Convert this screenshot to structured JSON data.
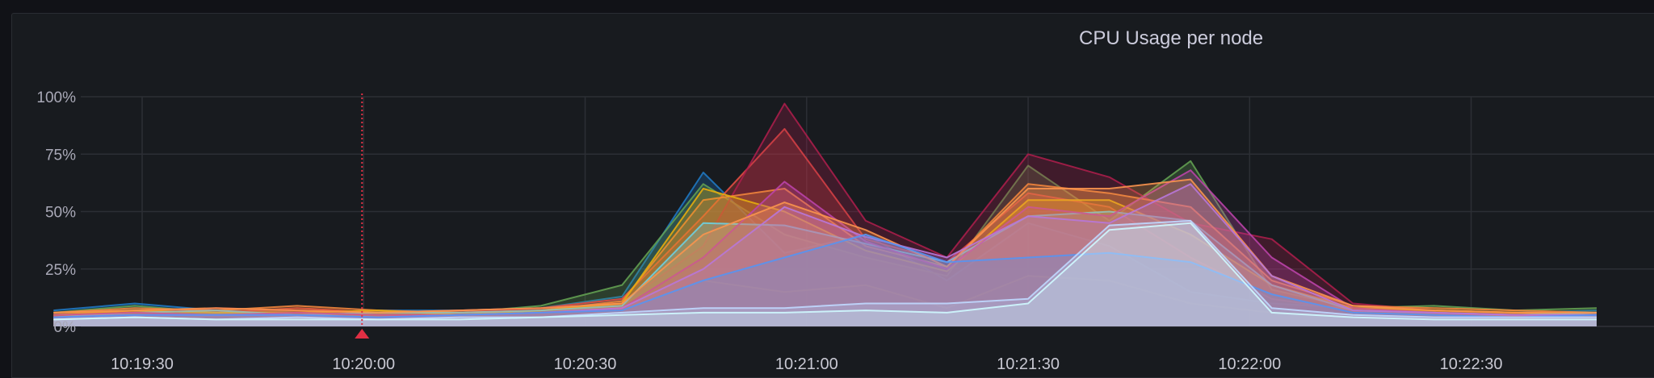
{
  "chart_data": {
    "type": "area",
    "title": "CPU Usage per node",
    "xlabel": "",
    "ylabel": "",
    "ylim": [
      0,
      100
    ],
    "yticks": [
      "0%",
      "25%",
      "50%",
      "75%",
      "100%"
    ],
    "ytick_values": [
      0,
      25,
      50,
      75,
      100
    ],
    "x": [
      "10:19:18",
      "10:19:29",
      "10:19:40",
      "10:19:51",
      "10:20:02",
      "10:20:13",
      "10:20:24",
      "10:20:35",
      "10:20:46",
      "10:20:57",
      "10:21:08",
      "10:21:19",
      "10:21:30",
      "10:21:41",
      "10:21:52",
      "10:22:03",
      "10:22:14",
      "10:22:25",
      "10:22:36",
      "10:22:47"
    ],
    "xticks": [
      "10:19:30",
      "10:20:00",
      "10:20:30",
      "10:21:00",
      "10:21:30",
      "10:22:00",
      "10:22:30"
    ],
    "annotation": {
      "time": "10:20:00",
      "color": "#e02f44"
    },
    "grid": true,
    "stacked": false,
    "series": [
      {
        "color": "#f2cc0c",
        "values": [
          4,
          6,
          5,
          6,
          5,
          5,
          6,
          7,
          20,
          15,
          18,
          8,
          22,
          20,
          10,
          6,
          5,
          4,
          5,
          4
        ]
      },
      {
        "color": "#1f78c1",
        "values": [
          7,
          10,
          7,
          6,
          7,
          7,
          8,
          13,
          67,
          32,
          40,
          20,
          45,
          35,
          15,
          10,
          8,
          7,
          6,
          7
        ]
      },
      {
        "color": "#629e51",
        "values": [
          6,
          9,
          6,
          7,
          6,
          6,
          9,
          18,
          62,
          40,
          30,
          22,
          70,
          46,
          72,
          16,
          8,
          9,
          7,
          8
        ]
      },
      {
        "color": "#e24d42",
        "values": [
          5,
          7,
          6,
          8,
          6,
          7,
          8,
          12,
          48,
          86,
          38,
          28,
          58,
          52,
          30,
          12,
          7,
          6,
          5,
          6
        ]
      },
      {
        "color": "#a91e4a",
        "values": [
          5,
          6,
          8,
          7,
          6,
          6,
          8,
          10,
          35,
          97,
          46,
          30,
          75,
          65,
          45,
          38,
          10,
          7,
          6,
          5
        ]
      },
      {
        "color": "#ef843c",
        "values": [
          6,
          8,
          7,
          9,
          7,
          6,
          7,
          11,
          55,
          60,
          35,
          26,
          62,
          58,
          52,
          20,
          9,
          8,
          7,
          6
        ]
      },
      {
        "color": "#e5ac0e",
        "values": [
          5,
          7,
          6,
          6,
          7,
          5,
          7,
          10,
          60,
          50,
          33,
          24,
          55,
          55,
          40,
          18,
          8,
          7,
          6,
          5
        ]
      },
      {
        "color": "#6ed0e0",
        "values": [
          4,
          6,
          7,
          5,
          6,
          6,
          7,
          9,
          45,
          44,
          36,
          28,
          48,
          50,
          46,
          18,
          7,
          6,
          5,
          6
        ]
      },
      {
        "color": "#ba43a9",
        "values": [
          5,
          6,
          5,
          6,
          5,
          5,
          6,
          8,
          30,
          63,
          37,
          25,
          52,
          48,
          68,
          30,
          8,
          6,
          5,
          5
        ]
      },
      {
        "color": "#f9934e",
        "values": [
          6,
          7,
          8,
          7,
          6,
          7,
          8,
          10,
          40,
          54,
          42,
          26,
          60,
          60,
          64,
          22,
          9,
          7,
          6,
          6
        ]
      },
      {
        "color": "#b877d9",
        "values": [
          4,
          5,
          5,
          5,
          4,
          5,
          6,
          8,
          25,
          52,
          39,
          30,
          48,
          45,
          62,
          22,
          7,
          6,
          5,
          5
        ]
      },
      {
        "color": "#5794f2",
        "values": [
          4,
          5,
          5,
          5,
          4,
          5,
          6,
          7,
          20,
          30,
          40,
          28,
          30,
          32,
          28,
          14,
          6,
          5,
          4,
          5
        ]
      },
      {
        "color": "#c0d8ff",
        "values": [
          3,
          4,
          3,
          4,
          3,
          4,
          4,
          6,
          8,
          8,
          10,
          10,
          12,
          44,
          46,
          8,
          5,
          4,
          4,
          4
        ]
      },
      {
        "color": "#cffaff",
        "values": [
          3,
          4,
          3,
          3,
          3,
          3,
          4,
          5,
          6,
          6,
          7,
          6,
          10,
          42,
          45,
          6,
          4,
          3,
          3,
          3
        ]
      }
    ]
  }
}
